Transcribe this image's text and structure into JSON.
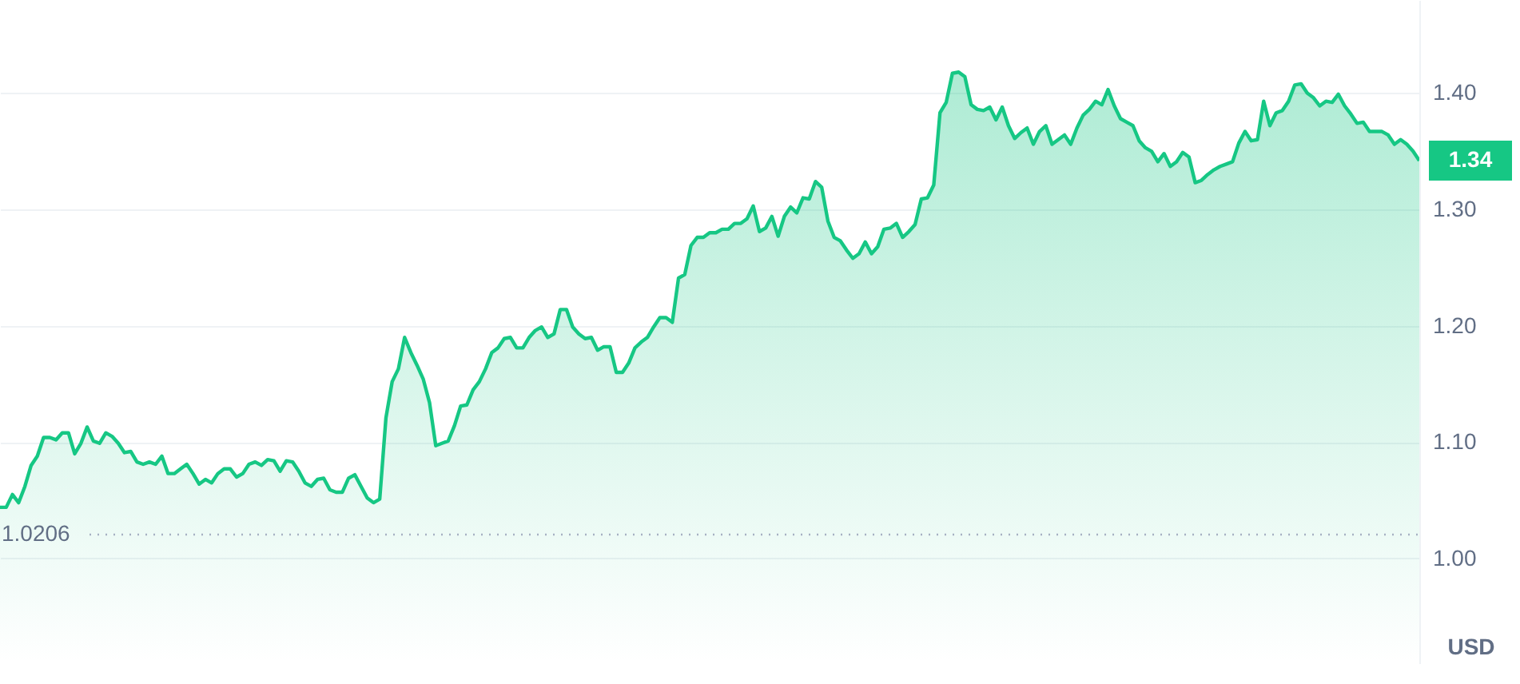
{
  "chart_data": {
    "type": "area",
    "color": "#16c784",
    "ylabel": "USD",
    "ylim": [
      0.91,
      1.48
    ],
    "yticks": [
      {
        "value": 1.0,
        "label": "1.00"
      },
      {
        "value": 1.1,
        "label": "1.10"
      },
      {
        "value": 1.2,
        "label": "1.20"
      },
      {
        "value": 1.3,
        "label": "1.30"
      },
      {
        "value": 1.4,
        "label": "1.40"
      }
    ],
    "grid": "y",
    "ref_lines": [
      {
        "axis": "y",
        "value": 1.0206,
        "label": "1.0206",
        "color": "#a6b0c3",
        "line_style": "dotted"
      }
    ],
    "annotations": [
      "1.34"
    ],
    "values": [
      1.044,
      1.044,
      1.055,
      1.048,
      1.062,
      1.08,
      1.088,
      1.104,
      1.104,
      1.102,
      1.108,
      1.108,
      1.09,
      1.099,
      1.113,
      1.101,
      1.099,
      1.108,
      1.105,
      1.099,
      1.091,
      1.092,
      1.083,
      1.081,
      1.083,
      1.081,
      1.088,
      1.073,
      1.073,
      1.077,
      1.081,
      1.073,
      1.064,
      1.068,
      1.065,
      1.073,
      1.077,
      1.077,
      1.07,
      1.073,
      1.081,
      1.083,
      1.08,
      1.085,
      1.084,
      1.075,
      1.084,
      1.083,
      1.075,
      1.065,
      1.062,
      1.068,
      1.069,
      1.059,
      1.057,
      1.057,
      1.069,
      1.072,
      1.062,
      1.052,
      1.048,
      1.051,
      1.121,
      1.152,
      1.163,
      1.19,
      1.177,
      1.166,
      1.154,
      1.134,
      1.097,
      1.099,
      1.101,
      1.114,
      1.131,
      1.132,
      1.145,
      1.152,
      1.163,
      1.177,
      1.181,
      1.189,
      1.19,
      1.181,
      1.181,
      1.19,
      1.196,
      1.199,
      1.19,
      1.193,
      1.214,
      1.214,
      1.199,
      1.193,
      1.189,
      1.19,
      1.179,
      1.182,
      1.182,
      1.16,
      1.16,
      1.168,
      1.181,
      1.186,
      1.19,
      1.199,
      1.207,
      1.207,
      1.203,
      1.241,
      1.244,
      1.269,
      1.276,
      1.276,
      1.28,
      1.28,
      1.283,
      1.283,
      1.288,
      1.288,
      1.292,
      1.303,
      1.281,
      1.284,
      1.294,
      1.277,
      1.294,
      1.302,
      1.297,
      1.31,
      1.309,
      1.324,
      1.319,
      1.29,
      1.276,
      1.273,
      1.265,
      1.258,
      1.262,
      1.272,
      1.262,
      1.268,
      1.283,
      1.284,
      1.288,
      1.276,
      1.281,
      1.287,
      1.309,
      1.31,
      1.321,
      1.383,
      1.392,
      1.417,
      1.418,
      1.414,
      1.39,
      1.386,
      1.385,
      1.388,
      1.377,
      1.388,
      1.372,
      1.361,
      1.366,
      1.37,
      1.356,
      1.367,
      1.372,
      1.356,
      1.36,
      1.364,
      1.356,
      1.37,
      1.381,
      1.386,
      1.393,
      1.39,
      1.403,
      1.389,
      1.378,
      1.375,
      1.372,
      1.359,
      1.353,
      1.35,
      1.341,
      1.348,
      1.337,
      1.341,
      1.349,
      1.345,
      1.323,
      1.325,
      1.33,
      1.334,
      1.337,
      1.339,
      1.341,
      1.357,
      1.367,
      1.359,
      1.36,
      1.393,
      1.372,
      1.383,
      1.385,
      1.393,
      1.407,
      1.408,
      1.4,
      1.396,
      1.389,
      1.393,
      1.392,
      1.399,
      1.389,
      1.382,
      1.374,
      1.375,
      1.367,
      1.367,
      1.367,
      1.364,
      1.356,
      1.36,
      1.356,
      1.35,
      1.342
    ]
  }
}
